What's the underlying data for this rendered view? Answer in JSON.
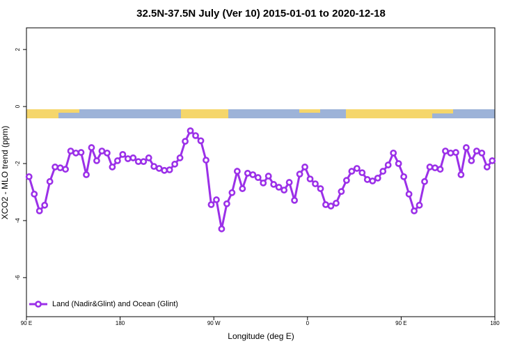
{
  "chart_data": {
    "type": "line",
    "title": "32.5N-37.5N July (Ver 10)   2015-01-01 to 2020-12-18",
    "x_label": "Longitude (deg E)",
    "y_label": "XCO2 - MLO trend (ppm)",
    "x": [
      92.5,
      97.5,
      102.5,
      107.5,
      112.5,
      117.5,
      122.5,
      127.5,
      132.5,
      137.5,
      142.5,
      147.5,
      152.5,
      157.5,
      162.5,
      167.5,
      172.5,
      177.5,
      182.5,
      187.5,
      192.5,
      197.5,
      202.5,
      207.5,
      212.5,
      217.5,
      222.5,
      227.5,
      232.5,
      237.5,
      242.5,
      247.5,
      252.5,
      257.5,
      262.5,
      267.5,
      272.5,
      277.5,
      282.5,
      287.5,
      292.5,
      297.5,
      302.5,
      307.5,
      312.5,
      317.5,
      322.5,
      327.5,
      332.5,
      337.5,
      342.5,
      347.5,
      352.5,
      357.5,
      362.5,
      367.5,
      372.5,
      377.5,
      382.5,
      387.5,
      392.5,
      397.5,
      402.5,
      407.5,
      412.5,
      417.5,
      422.5,
      427.5,
      432.5,
      437.5,
      442.5,
      447.5,
      452.5,
      457.5,
      462.5,
      467.5,
      472.5,
      477.5,
      482.5,
      487.5,
      492.5,
      497.5,
      502.5,
      507.5,
      512.5,
      517.5,
      522.5,
      527.5,
      532.5,
      537.5
    ],
    "series": [
      {
        "name": "Land (Nadir&Glint) and Ocean (Glint)",
        "color": "#9b30e8",
        "values": [
          -2.46,
          -3.07,
          -3.66,
          -3.46,
          -2.63,
          -2.12,
          -2.15,
          -2.2,
          -1.56,
          -1.63,
          -1.61,
          -2.39,
          -1.44,
          -1.9,
          -1.56,
          -1.63,
          -2.12,
          -1.9,
          -1.68,
          -1.83,
          -1.8,
          -1.93,
          -1.93,
          -1.8,
          -2.1,
          -2.17,
          -2.24,
          -2.22,
          -2.02,
          -1.8,
          -1.22,
          -0.85,
          -1.02,
          -1.2,
          -1.88,
          -3.44,
          -3.27,
          -4.29,
          -3.41,
          -3.02,
          -2.27,
          -2.88,
          -2.34,
          -2.39,
          -2.49,
          -2.68,
          -2.44,
          -2.73,
          -2.83,
          -2.93,
          -2.66,
          -3.29,
          -2.37,
          -2.12,
          -2.54,
          -2.71,
          -2.88,
          -3.44,
          -3.49,
          -3.39,
          -2.98,
          -2.59,
          -2.27,
          -2.17,
          -2.32,
          -2.56,
          -2.61,
          -2.51,
          -2.27,
          -2.05,
          -1.63,
          -2.0,
          -2.46,
          -3.07,
          -3.66,
          -3.46,
          -2.63,
          -2.12,
          -2.15,
          -2.2,
          -1.56,
          -1.63,
          -1.61,
          -2.39,
          -1.44,
          -1.9,
          -1.56,
          -1.63,
          -2.12,
          -1.9
        ]
      }
    ],
    "xlim": [
      90,
      540
    ],
    "xticks": [
      {
        "value": 90,
        "label": "90 E"
      },
      180,
      {
        "value": 270,
        "label": "90 W"
      },
      {
        "value": 360,
        "label": "0"
      },
      {
        "value": 450,
        "label": "90 E"
      },
      {
        "value": 540,
        "label": "180"
      }
    ],
    "ylim": [
      -7.37,
      2.76
    ],
    "yticks": [
      2,
      0,
      -2,
      -4,
      -6
    ],
    "legend": "bottom-left"
  }
}
